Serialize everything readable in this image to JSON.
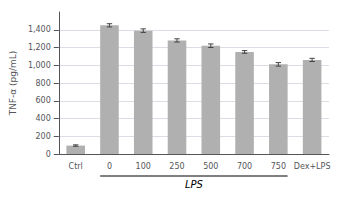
{
  "chart_data": {
    "type": "bar",
    "categories": [
      "Ctrl",
      "0",
      "100",
      "250",
      "500",
      "700",
      "750",
      "Dex+LPS"
    ],
    "values": [
      95,
      1450,
      1390,
      1280,
      1220,
      1150,
      1010,
      1060
    ],
    "errors": [
      8,
      18,
      20,
      18,
      20,
      15,
      20,
      18
    ],
    "color": "#b0b0b0",
    "ylabel": "TNF-α (pg/mL)",
    "annotations": [
      {
        "text": "LPS",
        "start": "0",
        "end": "750"
      }
    ],
    "ylim": [
      0,
      1600
    ],
    "yticks": [
      0,
      200,
      400,
      600,
      800,
      {
        "value": 1000,
        "label": "1,000"
      },
      {
        "value": 1200,
        "label": "1,200"
      },
      {
        "value": 1400,
        "label": "1,400"
      }
    ],
    "grid": true
  }
}
